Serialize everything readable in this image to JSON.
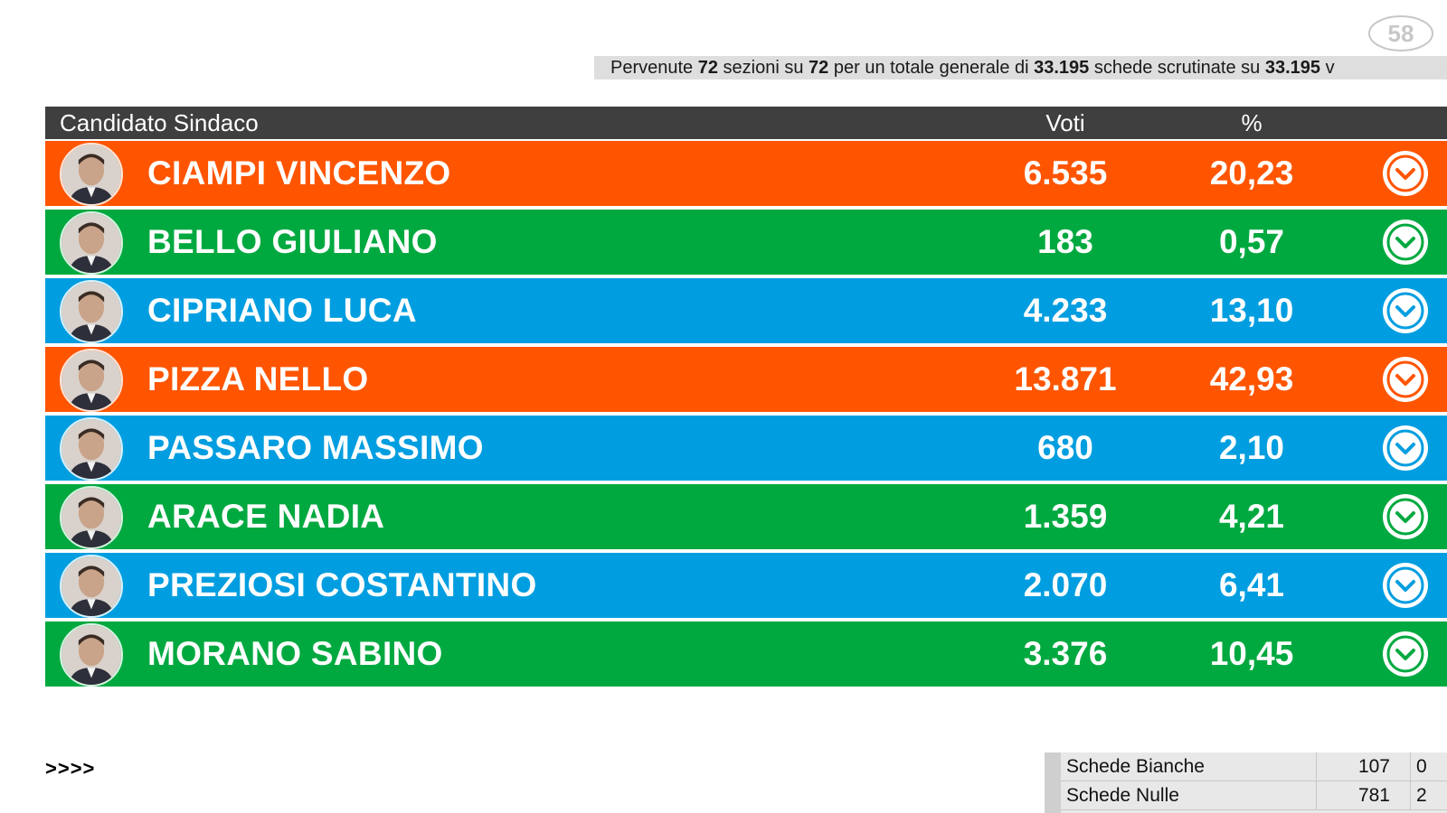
{
  "logo": {
    "text": "58"
  },
  "summary": {
    "t1": "Pervenute ",
    "received": "72",
    "t2": " sezioni su ",
    "total_sections": "72",
    "t3": " per un totale generale di ",
    "counted": "33.195",
    "t4": " schede scrutinate su ",
    "total_ballots": "33.195",
    "t5": " v"
  },
  "table": {
    "header": {
      "name": "Candidato Sindaco",
      "votes": "Voti",
      "pct": "%"
    },
    "rows": [
      {
        "name": "CIAMPI VINCENZO",
        "votes": "6.535",
        "pct": "20,23",
        "color": "#ff5500"
      },
      {
        "name": "BELLO GIULIANO",
        "votes": "183",
        "pct": "0,57",
        "color": "#00a940"
      },
      {
        "name": "CIPRIANO LUCA",
        "votes": "4.233",
        "pct": "13,10",
        "color": "#009ee0"
      },
      {
        "name": "PIZZA NELLO",
        "votes": "13.871",
        "pct": "42,93",
        "color": "#ff5500"
      },
      {
        "name": "PASSARO MASSIMO",
        "votes": "680",
        "pct": "2,10",
        "color": "#009ee0"
      },
      {
        "name": "ARACE NADIA",
        "votes": "1.359",
        "pct": "4,21",
        "color": "#00a940"
      },
      {
        "name": "PREZIOSI COSTANTINO",
        "votes": "2.070",
        "pct": "6,41",
        "color": "#009ee0"
      },
      {
        "name": "MORANO SABINO",
        "votes": "3.376",
        "pct": "10,45",
        "color": "#00a940"
      }
    ]
  },
  "more_link": ">>>>",
  "stats": [
    {
      "label": "Schede Bianche",
      "value": "107",
      "pct": "0"
    },
    {
      "label": "Schede Nulle",
      "value": "781",
      "pct": "2"
    }
  ],
  "icons": {
    "expand": "chevron-down-circle-icon",
    "avatar": "avatar"
  }
}
